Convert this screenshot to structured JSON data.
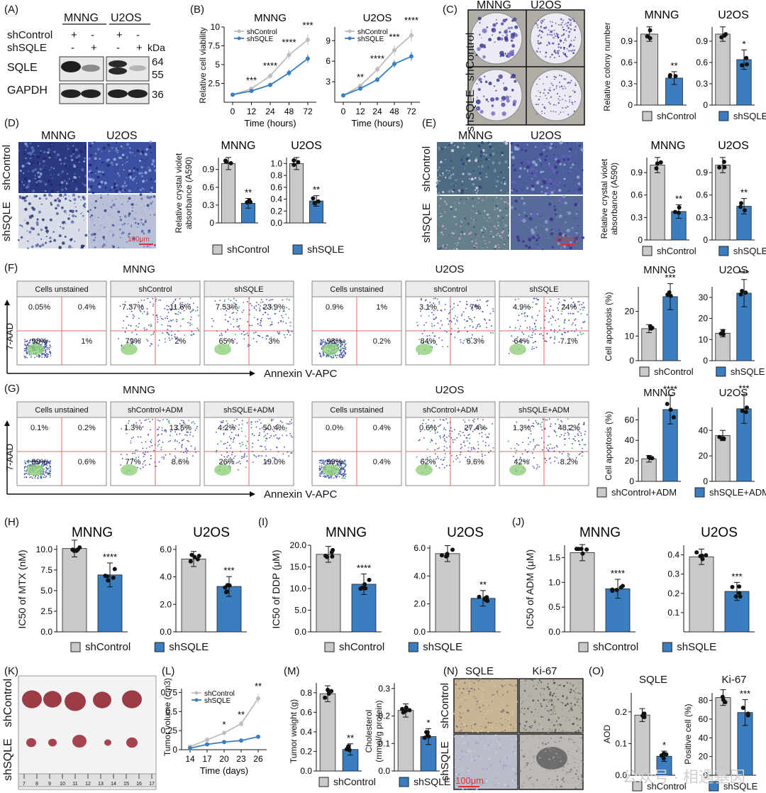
{
  "colors": {
    "control": "#c9c9c9",
    "treat": "#3a7ebf",
    "dark": "#1d1d1d",
    "gate": "#e06a6a",
    "crystal": "#2b3a80",
    "hist": "#c8b59a"
  },
  "labels": {
    "A": "(A)",
    "B": "(B)",
    "C": "(C)",
    "D": "(D)",
    "E": "(E)",
    "F": "(F)",
    "G": "(G)",
    "H": "(H)",
    "I": "(I)",
    "J": "(J)",
    "K": "(K)",
    "L": "(L)",
    "M": "(M)",
    "N": "(N)",
    "O": "(O)"
  },
  "text": {
    "mnng": "MNNG",
    "u2os": "U2OS",
    "shControl": "shControl",
    "shSQLE": "shSQLE",
    "plus": "+",
    "minus": "-",
    "kda": "kDa",
    "sqle": "SQLE",
    "gapdh": "GAPDH",
    "m64": "64",
    "m55": "55",
    "m36": "36",
    "via_y": "Relative cell viability",
    "time_h": "Time (hours)",
    "col_y": "Relative colony number",
    "cv_y1": "Relative crystal violet",
    "cv_y2": "absorbance (A590)",
    "scale100": "100μm",
    "apop_y": "Cell apoptosis (%)",
    "aad": "7-AAD",
    "annexin": "Annexin V-APC",
    "unstained": "Cells unstained",
    "shControlADM": "shControl+ADM",
    "shSQLEADM": "shSQLE+ADM",
    "ic_mtx": "IC50 of MTX (nM)",
    "ic_ddp": "IC50 of DDP (μM)",
    "ic_adm": "IC50 of ADM (μM)",
    "tv_y": "Tumor volume (cm3)",
    "time_d": "Time (days)",
    "tw_y": "Tumor weight (g)",
    "ch_y1": "Cholesterol",
    "ch_y2": "(mmol/g protein)",
    "ki67": "Ki-67",
    "aod": "AOD",
    "pos": "Positive cell (%)",
    "watermark": "公众号 · 相遇基因"
  },
  "chart_data": [
    {
      "panel": "B",
      "type": "line",
      "title": "MNNG",
      "x": [
        0,
        12,
        24,
        48,
        72
      ],
      "xlabel": "Time (hours)",
      "ylabel": "Relative cell viability",
      "ylim": [
        0,
        10
      ],
      "series": [
        {
          "name": "shControl",
          "values": [
            1.0,
            1.8,
            3.5,
            6.3,
            8.3
          ]
        },
        {
          "name": "shSQLE",
          "values": [
            1.0,
            1.5,
            2.3,
            3.9,
            5.8
          ]
        }
      ],
      "sig": [
        "",
        "***",
        "****",
        "****",
        "***"
      ]
    },
    {
      "panel": "B",
      "type": "line",
      "title": "U2OS",
      "x": [
        0,
        12,
        24,
        48,
        72
      ],
      "xlabel": "Time (hours)",
      "ylim": [
        0,
        11
      ],
      "series": [
        {
          "name": "shControl",
          "values": [
            1.0,
            2.4,
            4.8,
            7.6,
            9.8
          ]
        },
        {
          "name": "shSQLE",
          "values": [
            1.0,
            2.0,
            3.3,
            5.6,
            6.7
          ]
        }
      ],
      "sig": [
        "",
        "**",
        "****",
        "***",
        "****"
      ]
    },
    {
      "panel": "C",
      "type": "bar",
      "title": "MNNG",
      "categories": [
        "shControl",
        "shSQLE"
      ],
      "values": [
        1.0,
        0.38
      ],
      "ylim": [
        0,
        1.1
      ],
      "sig": "**"
    },
    {
      "panel": "C",
      "type": "bar",
      "title": "U2OS",
      "categories": [
        "shControl",
        "shSQLE"
      ],
      "values": [
        1.0,
        0.64
      ],
      "ylim": [
        0,
        1.1
      ],
      "sig": "*"
    },
    {
      "panel": "D",
      "type": "bar",
      "title": "MNNG",
      "categories": [
        "shControl",
        "shSQLE"
      ],
      "values": [
        1.0,
        0.33
      ],
      "ylim": [
        0,
        1.1
      ],
      "sig": "**"
    },
    {
      "panel": "D",
      "type": "bar",
      "title": "U2OS",
      "categories": [
        "shControl",
        "shSQLE"
      ],
      "values": [
        1.0,
        0.37
      ],
      "ylim": [
        0,
        1.1
      ],
      "sig": "**"
    },
    {
      "panel": "E",
      "type": "bar",
      "title": "MNNG",
      "categories": [
        "shControl",
        "shSQLE"
      ],
      "values": [
        1.0,
        0.38
      ],
      "ylim": [
        0,
        1.1
      ],
      "sig": "**"
    },
    {
      "panel": "E",
      "type": "bar",
      "title": "U2OS",
      "categories": [
        "shControl",
        "shSQLE"
      ],
      "values": [
        1.0,
        0.45
      ],
      "ylim": [
        0,
        1.1
      ],
      "sig": "**"
    },
    {
      "panel": "F",
      "type": "bar",
      "title": "MNNG",
      "categories": [
        "shControl",
        "shSQLE"
      ],
      "values": [
        13,
        26
      ],
      "ylim": [
        0,
        30
      ],
      "sig": "***"
    },
    {
      "panel": "F",
      "type": "bar",
      "title": "U2OS",
      "categories": [
        "shControl",
        "shSQLE"
      ],
      "values": [
        13,
        32
      ],
      "ylim": [
        0,
        35
      ],
      "sig": "***"
    },
    {
      "panel": "G",
      "type": "bar",
      "title": "MNNG",
      "categories": [
        "shControl+ADM",
        "shSQLE+ADM"
      ],
      "values": [
        22,
        70
      ],
      "ylim": [
        0,
        72
      ],
      "sig": "****"
    },
    {
      "panel": "G",
      "type": "bar",
      "title": "U2OS",
      "categories": [
        "shControl+ADM",
        "shSQLE+ADM"
      ],
      "values": [
        36,
        57
      ],
      "ylim": [
        0,
        58
      ],
      "sig": "***"
    },
    {
      "panel": "H",
      "type": "bar",
      "title": "MNNG",
      "categories": [
        "shControl",
        "shSQLE"
      ],
      "values": [
        10.1,
        6.9
      ],
      "ylim": [
        0,
        10.5
      ],
      "ylabel": "IC50 of MTX (nM)",
      "sig": "****"
    },
    {
      "panel": "H",
      "type": "bar",
      "title": "U2OS",
      "categories": [
        "shControl",
        "shSQLE"
      ],
      "values": [
        5.3,
        3.3
      ],
      "ylim": [
        0,
        6.3
      ],
      "sig": "***"
    },
    {
      "panel": "I",
      "type": "bar",
      "title": "MNNG",
      "categories": [
        "shControl",
        "shSQLE"
      ],
      "values": [
        17.9,
        11.0
      ],
      "ylim": [
        0,
        20
      ],
      "ylabel": "IC50 of DDP (μM)",
      "sig": "****"
    },
    {
      "panel": "I",
      "type": "bar",
      "title": "U2OS",
      "categories": [
        "shControl",
        "shSQLE"
      ],
      "values": [
        5.6,
        2.4
      ],
      "ylim": [
        0,
        6.2
      ],
      "sig": "**"
    },
    {
      "panel": "J",
      "type": "bar",
      "title": "MNNG",
      "categories": [
        "shControl",
        "shSQLE"
      ],
      "values": [
        1.6,
        0.87
      ],
      "ylim": [
        0,
        1.75
      ],
      "ylabel": "IC50 of ADM (μM)",
      "sig": "****"
    },
    {
      "panel": "J",
      "type": "bar",
      "title": "U2OS",
      "categories": [
        "shControl",
        "shSQLE"
      ],
      "values": [
        0.39,
        0.21
      ],
      "ylim": [
        0,
        0.45
      ],
      "sig": "***"
    },
    {
      "panel": "L",
      "type": "line",
      "x": [
        14,
        17,
        20,
        23,
        26
      ],
      "xlabel": "Time (days)",
      "ylabel": "Tumor volume (cm3)",
      "ylim": [
        0,
        0.8
      ],
      "series": [
        {
          "name": "shControl",
          "values": [
            0.04,
            0.13,
            0.22,
            0.34,
            0.67
          ]
        },
        {
          "name": "shSQLE",
          "values": [
            0.02,
            0.07,
            0.1,
            0.12,
            0.17
          ]
        }
      ],
      "sig": [
        "",
        "",
        "*",
        "**",
        "**"
      ]
    },
    {
      "panel": "M",
      "type": "bar",
      "categories": [
        "shControl",
        "shSQLE"
      ],
      "values": [
        0.79,
        0.22
      ],
      "ylim": [
        0,
        0.9
      ],
      "ylabel": "Tumor weight (g)",
      "sig": "**"
    },
    {
      "panel": "M",
      "type": "bar",
      "categories": [
        "shControl",
        "shSQLE"
      ],
      "values": [
        0.22,
        0.125
      ],
      "ylim": [
        0,
        0.32
      ],
      "ylabel": "Cholesterol (mmol/g protein)",
      "sig": "*"
    },
    {
      "panel": "O",
      "type": "bar",
      "title": "SQLE",
      "categories": [
        "shControl",
        "shSQLE"
      ],
      "values": [
        0.19,
        0.06
      ],
      "ylim": [
        0,
        0.26
      ],
      "ylabel": "AOD",
      "sig": "*"
    },
    {
      "panel": "O",
      "type": "bar",
      "title": "Ki-67",
      "categories": [
        "shControl",
        "shSQLE"
      ],
      "values": [
        83,
        67
      ],
      "ylim": [
        0,
        88
      ],
      "ylabel": "Positive cell (%)",
      "sig": "***"
    }
  ],
  "flow": {
    "F": {
      "MNNG": [
        [
          "0.05%",
          "0.4%",
          "98%",
          "1%"
        ],
        [
          "7.37%",
          "11.6%",
          "79%",
          "2%"
        ],
        [
          "7.53%",
          "23.9%",
          "65%",
          "3%"
        ]
      ],
      "U2OS": [
        [
          "0.9%",
          "1%",
          "98%",
          "0.2%"
        ],
        [
          "3.1%",
          "7%",
          "84%",
          "6.3%"
        ],
        [
          "4.9%",
          "24%",
          "64%",
          "7.1%"
        ]
      ]
    },
    "G": {
      "MNNG": [
        [
          "0.1%",
          "0.2%",
          "99%",
          "0.6%"
        ],
        [
          "1.3%",
          "13.5%",
          "77%",
          "8.6%"
        ],
        [
          "4.2%",
          "50.4%",
          "26%",
          "19.0%"
        ]
      ],
      "U2OS": [
        [
          "0.0%",
          "0.4%",
          "99%",
          "0.4%"
        ],
        [
          "0.6%",
          "27.4%",
          "62%",
          "9.6%"
        ],
        [
          "1.3%",
          "48.2%",
          "42%",
          "8.2%"
        ]
      ]
    }
  },
  "ruler": [
    "7",
    "8",
    "9",
    "10",
    "11",
    "12",
    "13",
    "14",
    "15",
    "16",
    "17"
  ]
}
